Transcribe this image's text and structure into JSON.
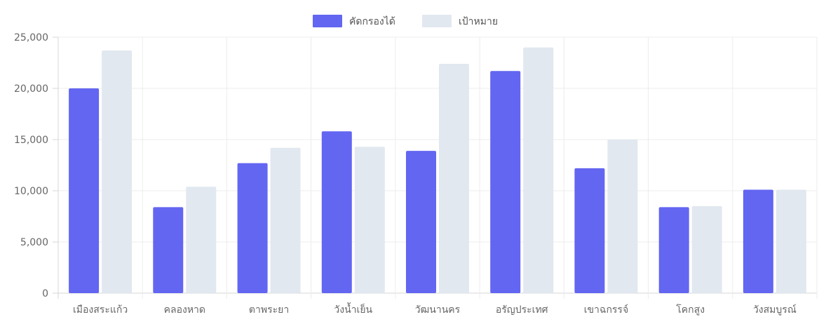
{
  "chart_data": {
    "type": "bar",
    "categories": [
      "เมืองสระแก้ว",
      "คลองหาด",
      "ตาพระยา",
      "วังน้ำเย็น",
      "วัฒนานคร",
      "อรัญประเทศ",
      "เขาฉกรรจ์",
      "โคกสูง",
      "วังสมบูรณ์"
    ],
    "series": [
      {
        "name": "คัดกรองได้",
        "color": "#6366f1",
        "values": [
          20000,
          8400,
          12700,
          15800,
          13900,
          21700,
          12200,
          8400,
          10100
        ]
      },
      {
        "name": "เป้าหมาย",
        "color": "#e2e8f0",
        "values": [
          23700,
          10400,
          14200,
          14300,
          22400,
          24000,
          15000,
          8500,
          10100
        ]
      }
    ],
    "ylim": [
      0,
      25000
    ],
    "yticks": [
      "0",
      "5,000",
      "10,000",
      "15,000",
      "20,000",
      "25,000"
    ],
    "grid": true,
    "legend_position": "top-center"
  }
}
